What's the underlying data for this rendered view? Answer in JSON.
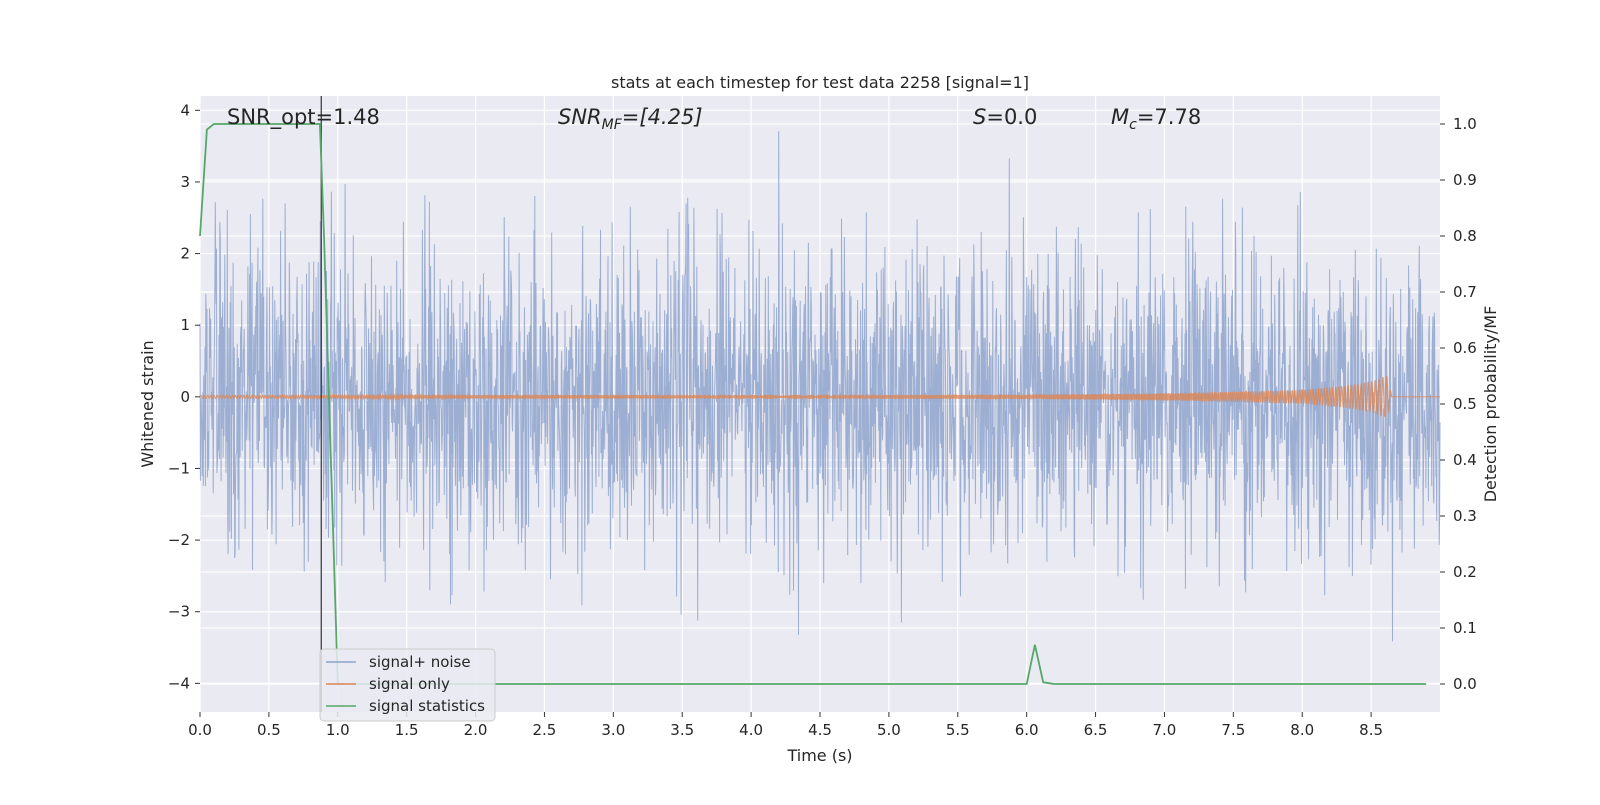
{
  "chart_data": {
    "type": "line",
    "title": "stats at each timestep for test data 2258 [signal=1]",
    "xlabel": "Time (s)",
    "ylabel": "Whitened strain",
    "y2label": "Detection probability/MF",
    "xlim": [
      0.0,
      9.0
    ],
    "ylim": [
      -4.4,
      4.2
    ],
    "y2lim": [
      -0.05,
      1.05
    ],
    "x_ticks": [
      "0.0",
      "0.5",
      "1.0",
      "1.5",
      "2.0",
      "2.5",
      "3.0",
      "3.5",
      "4.0",
      "4.5",
      "5.0",
      "5.5",
      "6.0",
      "6.5",
      "7.0",
      "7.5",
      "8.0",
      "8.5"
    ],
    "y_ticks": [
      "−4",
      "−3",
      "−2",
      "−1",
      "0",
      "1",
      "2",
      "3",
      "4"
    ],
    "y2_ticks": [
      "0.0",
      "0.1",
      "0.2",
      "0.3",
      "0.4",
      "0.5",
      "0.6",
      "0.7",
      "0.8",
      "0.9",
      "1.0"
    ],
    "grid": true,
    "legend_position": "lower-left",
    "annotations": {
      "snr_opt": "SNR_opt=1.48",
      "snr_mf_main": "SNR",
      "snr_mf_sub": "MF",
      "snr_mf_rest": "=[4.25]",
      "s_main": "S",
      "s_rest": "=0.0",
      "mc_main": "M",
      "mc_sub": "c",
      "mc_rest": "=7.78"
    },
    "marker_line_x": 0.88,
    "series": [
      {
        "name": "signal+ noise",
        "color": "#8ea3cc",
        "description_values": "dense whitened noise, envelope approx ±2.3, peaks near ±3.8",
        "envelope": [
          -2.3,
          2.3
        ]
      },
      {
        "name": "signal only",
        "color": "#dd8452",
        "x": [
          0.0,
          6.0,
          7.0,
          7.5,
          8.0,
          8.3,
          8.5,
          8.62,
          8.65,
          9.0
        ],
        "amplitude": [
          0.02,
          0.03,
          0.05,
          0.07,
          0.1,
          0.15,
          0.22,
          0.3,
          0.0,
          0.0
        ]
      },
      {
        "name": "signal statistics",
        "color": "#55a868",
        "axis": "right",
        "x": [
          0.0,
          0.05,
          0.1,
          0.2,
          0.5,
          0.87,
          0.9,
          1.0,
          2.0,
          4.0,
          6.0,
          6.06,
          6.12,
          6.2,
          7.0,
          8.0,
          8.9
        ],
        "y": [
          0.8,
          0.99,
          1.0,
          1.0,
          1.0,
          1.0,
          0.8,
          0.0,
          0.0,
          0.0,
          0.0,
          0.07,
          0.003,
          0.0,
          0.0,
          0.0,
          0.0
        ]
      }
    ]
  }
}
